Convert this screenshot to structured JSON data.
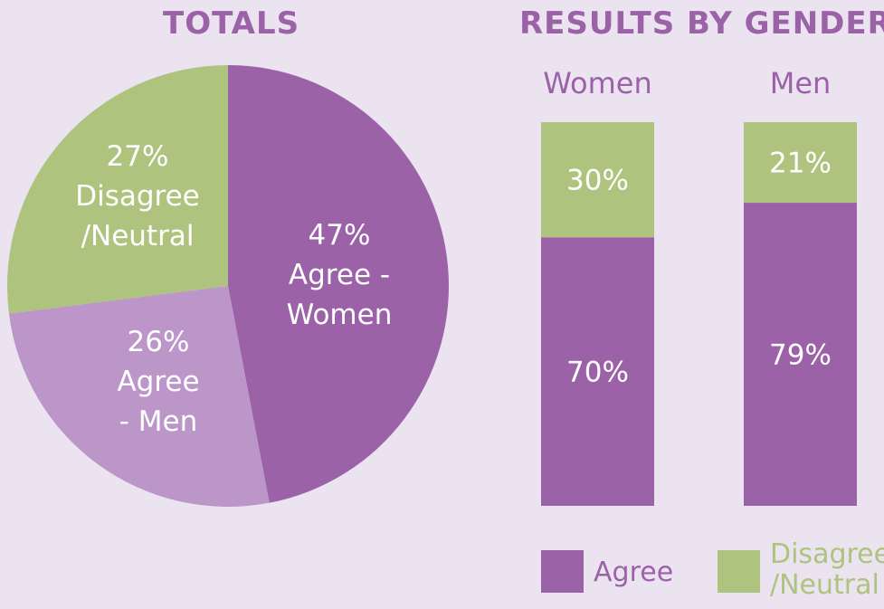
{
  "colors": {
    "background": "#ebe3f0",
    "agree": "#9b62a8",
    "agree_men": "#bc96c9",
    "disagree": "#aec47e",
    "title": "#9b62a8",
    "label_white": "#ffffff"
  },
  "chart_data": [
    {
      "type": "pie",
      "title": "TOTALS",
      "slices": [
        {
          "label": [
            "47%",
            "Agree -",
            "Women"
          ],
          "value": 47,
          "color": "#9b62a8"
        },
        {
          "label": [
            "26%",
            "Agree",
            "- Men"
          ],
          "value": 26,
          "color": "#bc96c9"
        },
        {
          "label": [
            "27%",
            "Disagree",
            "/Neutral"
          ],
          "value": 27,
          "color": "#aec47e"
        }
      ]
    },
    {
      "type": "bar",
      "stacked": true,
      "title": "RESULTS BY GENDER",
      "categories": [
        "Women",
        "Men"
      ],
      "series": [
        {
          "name": "Agree",
          "values": [
            70,
            79
          ],
          "labels": [
            "70%",
            "79%"
          ],
          "color": "#9b62a8"
        },
        {
          "name": "Disagree /Neutral",
          "values": [
            30,
            21
          ],
          "labels": [
            "30%",
            "21%"
          ],
          "color": "#aec47e"
        }
      ],
      "ylim": [
        0,
        100
      ],
      "legend": {
        "position": "bottom",
        "items": [
          {
            "label": [
              "Agree"
            ],
            "color": "#9b62a8"
          },
          {
            "label": [
              "Disagree",
              "/Neutral"
            ],
            "color": "#aec47e"
          }
        ]
      }
    }
  ]
}
